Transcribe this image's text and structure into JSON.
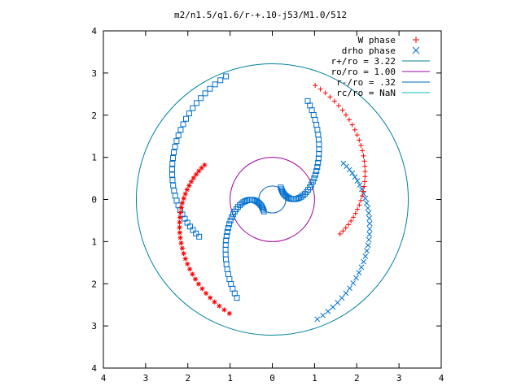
{
  "chart_data": {
    "type": "scatter",
    "title": "m2/n1.5/q1.6/r-+.10-j53/M1.0/512",
    "xlabel": "",
    "ylabel": "",
    "xlim": [
      -4,
      4
    ],
    "ylim": [
      -4,
      4
    ],
    "x_ticks": [
      -4,
      -3,
      -2,
      -1,
      0,
      1,
      2,
      3,
      4
    ],
    "y_ticks": [
      -4,
      -3,
      -2,
      -1,
      0,
      1,
      2,
      3,
      4
    ],
    "x_tick_labels": [
      "4",
      "3",
      "2",
      "1",
      "0",
      "1",
      "2",
      "3",
      "4"
    ],
    "y_tick_labels": [
      "4",
      "3",
      "2",
      "1",
      "0",
      "1",
      "2",
      "3",
      "4"
    ],
    "grid": false,
    "legend_position": "top-right",
    "series": [
      {
        "name": "W phase",
        "marker": "plus-star",
        "color": "#ff0000",
        "description": "two-armed spiral of phase points, approximate"
      },
      {
        "name": "drho phase",
        "marker": "cross-square",
        "color": "#0070d0",
        "description": "two-armed spiral of phase points, approximate"
      },
      {
        "name": "r+/ro = 3.22",
        "kind": "circle",
        "radius": 3.22,
        "color": "#0080a0"
      },
      {
        "name": "ro/ro = 1.00",
        "kind": "circle",
        "radius": 1.0,
        "color": "#a000a0"
      },
      {
        "name": "r-/ro = .32",
        "kind": "circle",
        "radius": 0.32,
        "color": "#0060c0"
      },
      {
        "name": "rc/ro = NaN",
        "kind": "circle",
        "radius": null,
        "color": "#00c0c0"
      }
    ]
  }
}
